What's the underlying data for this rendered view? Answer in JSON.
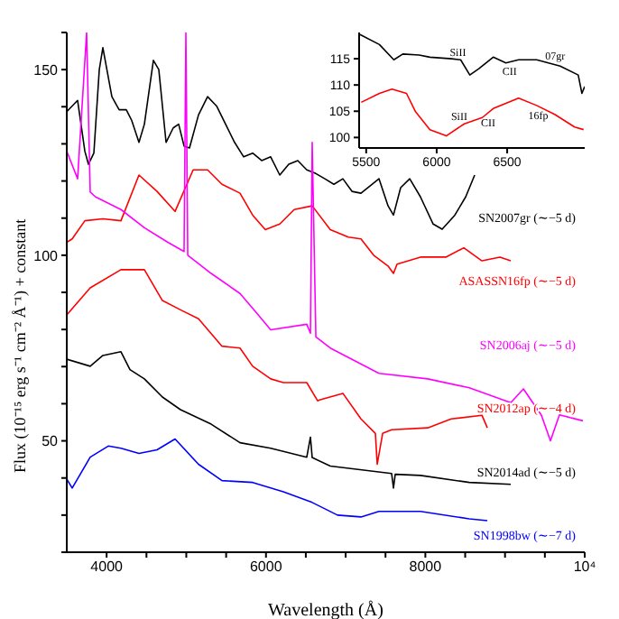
{
  "chart_data": [
    {
      "type": "line",
      "xlabel": "Wavelength (Å)",
      "ylabel": "Flux (10⁻¹⁵ erg s⁻¹ cm⁻² Å⁻¹) + constant",
      "xlim": [
        3500,
        10000
      ],
      "ylim": [
        20,
        160
      ],
      "xticks": [
        4000,
        {
          "value": 4500,
          "label": null
        },
        {
          "value": 5000,
          "label": null
        },
        {
          "value": 5500,
          "label": null
        },
        6000,
        {
          "value": 6500,
          "label": null
        },
        {
          "value": 7000,
          "label": null
        },
        {
          "value": 7500,
          "label": null
        },
        8000,
        {
          "value": 8500,
          "label": null
        },
        {
          "value": 9000,
          "label": null
        },
        {
          "value": 9500,
          "label": null
        },
        {
          "value": 10000,
          "label": "10⁴"
        }
      ],
      "yticks": [
        {
          "value": 20,
          "label": null
        },
        {
          "value": 30,
          "label": null
        },
        {
          "value": 40,
          "label": null
        },
        50,
        {
          "value": 60,
          "label": null
        },
        {
          "value": 70,
          "label": null
        },
        {
          "value": 80,
          "label": null
        },
        {
          "value": 90,
          "label": null
        },
        100,
        {
          "value": 110,
          "label": null
        },
        {
          "value": 120,
          "label": null
        },
        {
          "value": 130,
          "label": null
        },
        {
          "value": 140,
          "label": null
        },
        150,
        {
          "value": 160,
          "label": null
        }
      ],
      "grid": false,
      "legend": false,
      "marker": "none",
      "line_style": "solid",
      "series": [
        {
          "name": "SN2007gr (∼−5 d)",
          "color": "#000000",
          "x": [
            3500,
            3568,
            3636,
            3727,
            3772,
            3840,
            3908,
            3953,
            4066,
            4157,
            4247,
            4315,
            4406,
            4474,
            4587,
            4655,
            4746,
            4836,
            4904,
            4972,
            5040,
            5153,
            5267,
            5380,
            5493,
            5606,
            5720,
            5833,
            5946,
            6059,
            6173,
            6286,
            6399,
            6512,
            6626,
            6739,
            6852,
            6965,
            7079,
            7192,
            7418,
            7532,
            7600,
            7690,
            7804,
            7939,
            8098,
            8211,
            8370,
            8506,
            8619
          ],
          "values": [
            138.7,
            140.2,
            141.7,
            128,
            124.5,
            127.5,
            150,
            155.9,
            142.7,
            139.2,
            139.2,
            136.3,
            130.4,
            135.3,
            152.5,
            150,
            130.4,
            134.3,
            135.3,
            129.4,
            128.9,
            137.8,
            142.7,
            140.2,
            135.3,
            130.4,
            126.5,
            127.5,
            125.5,
            126.5,
            121.6,
            124.5,
            125.5,
            123,
            122,
            120.6,
            119.1,
            120.6,
            117.2,
            116.7,
            120.6,
            113.3,
            110.8,
            118.2,
            120.6,
            115.7,
            108.4,
            107,
            110.8,
            115.7,
            121.6
          ]
        },
        {
          "name": "ASASSN16fp (∼−5 d)",
          "color": "#ff0000",
          "x": [
            3500,
            3568,
            3727,
            3953,
            4180,
            4406,
            4633,
            4859,
            5086,
            5267,
            5448,
            5674,
            5833,
            5992,
            6173,
            6354,
            6580,
            6807,
            7033,
            7192,
            7351,
            7532,
            7600,
            7645,
            7939,
            8257,
            8483,
            8710,
            8936,
            9072
          ],
          "values": [
            103.5,
            104.4,
            109.3,
            109.8,
            109.3,
            121.6,
            117.2,
            111.8,
            123,
            123,
            119.1,
            116.7,
            110.8,
            106.9,
            108.4,
            112.3,
            113.3,
            106.9,
            104.9,
            104.4,
            100,
            97.1,
            95.1,
            97.6,
            99.5,
            99.5,
            102,
            98.5,
            99.5,
            98.5
          ]
        },
        {
          "name": "SN2006aj (∼−5 d)",
          "color": "#ff00ff",
          "x": [
            3500,
            3636,
            3749,
            3794,
            3862,
            4180,
            4474,
            4768,
            4972,
            4995,
            5018,
            5312,
            5674,
            5901,
            6059,
            6512,
            6558,
            6580,
            6626,
            6807,
            7418,
            8030,
            8551,
            9072,
            9231,
            9457,
            9570,
            9683,
            9978
          ],
          "values": [
            128,
            120.6,
            160,
            117,
            115.7,
            112.3,
            107.4,
            103.5,
            101,
            160,
            100,
            95.1,
            89.7,
            84,
            79.9,
            81.4,
            79,
            130.4,
            78,
            75,
            68.2,
            66.7,
            64.3,
            60.3,
            64,
            56.9,
            50,
            57,
            55.4
          ]
        },
        {
          "name": "SN2012ap (∼−4 d)",
          "color": "#ff0000",
          "x": [
            3500,
            3794,
            4180,
            4474,
            4700,
            4927,
            5153,
            5448,
            5674,
            5833,
            6059,
            6218,
            6512,
            6648,
            6671,
            6965,
            7192,
            7373,
            7396,
            7464,
            7577,
            8030,
            8324,
            8710,
            8778
          ],
          "values": [
            83.9,
            91.2,
            96.1,
            96.1,
            87.8,
            85.3,
            82.9,
            75.5,
            75,
            70.1,
            66.7,
            65.7,
            65.7,
            60.8,
            61,
            62.8,
            55.9,
            52,
            43.7,
            52,
            53,
            53.5,
            55.9,
            56.9,
            53.5
          ]
        },
        {
          "name": "SN2014ad (∼−5 d)",
          "color": "#000000",
          "x": [
            3500,
            3794,
            3953,
            4180,
            4293,
            4474,
            4700,
            4927,
            5312,
            5674,
            6059,
            6512,
            6558,
            6580,
            6807,
            7577,
            7600,
            7622,
            7939,
            8551,
            9072
          ],
          "values": [
            72,
            70.1,
            73,
            74,
            69.2,
            66.7,
            61.8,
            58.4,
            54.5,
            49.5,
            48,
            45.6,
            51,
            45.5,
            43.2,
            41.2,
            37.3,
            41,
            40.7,
            38.8,
            38.3
          ]
        },
        {
          "name": "SN1998bw (∼−7 d)",
          "color": "#0000ff",
          "x": [
            3500,
            3568,
            3794,
            4021,
            4180,
            4406,
            4633,
            4859,
            5153,
            5448,
            5833,
            6218,
            6580,
            6898,
            7192,
            7418,
            7939,
            8551,
            8778
          ],
          "values": [
            39.7,
            37.3,
            45.6,
            48.6,
            48,
            46.6,
            47.6,
            50.5,
            43.7,
            39.3,
            38.8,
            36.3,
            33.4,
            30,
            29.5,
            31,
            31,
            29,
            28.5
          ]
        }
      ]
    },
    {
      "type": "line",
      "xlim": [
        5450,
        7050
      ],
      "ylim": [
        98,
        120
      ],
      "xticks": [
        5500,
        6000,
        6500
      ],
      "yticks": [
        100,
        105,
        110,
        115
      ],
      "grid": false,
      "legend": false,
      "marker": "none",
      "line_style": "solid",
      "annotations": [
        {
          "text": "SiII",
          "x": 6150,
          "y": 116.2
        },
        {
          "text": "CII",
          "x": 6517,
          "y": 112.6
        },
        {
          "text": "07gr",
          "x": 6840,
          "y": 115.6
        },
        {
          "text": "SiII",
          "x": 6160,
          "y": 104
        },
        {
          "text": "CII",
          "x": 6365,
          "y": 102.9
        },
        {
          "text": "16fp",
          "x": 6720,
          "y": 104.3
        }
      ],
      "series": [
        {
          "color": "#000000",
          "x": [
            5456,
            5594,
            5696,
            5760,
            5876,
            5952,
            6106,
            6170,
            6235,
            6299,
            6401,
            6491,
            6581,
            6709,
            6876,
            7004,
            7030,
            7050
          ],
          "values": [
            119.6,
            117.7,
            114.8,
            115.9,
            115.7,
            115.3,
            115,
            114.8,
            111.9,
            113.1,
            115.3,
            114.2,
            114.8,
            114.8,
            113.6,
            111.9,
            108.4,
            109.7
          ]
        },
        {
          "color": "#ff0000",
          "x": [
            5465,
            5594,
            5683,
            5786,
            5850,
            5952,
            6068,
            6196,
            6324,
            6401,
            6581,
            6709,
            6837,
            6978,
            7042
          ],
          "values": [
            106.7,
            108.4,
            109.2,
            108.4,
            104.9,
            101.5,
            100.3,
            102.6,
            103.8,
            105.5,
            107.5,
            106.1,
            104.4,
            102,
            101.5
          ]
        }
      ]
    }
  ]
}
